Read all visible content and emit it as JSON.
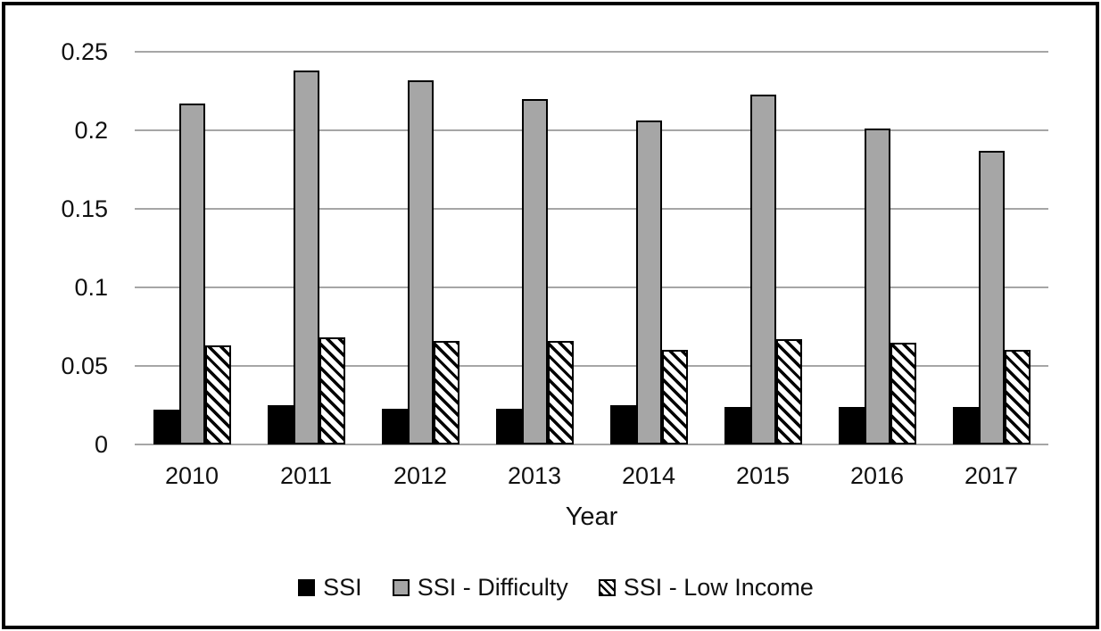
{
  "figure": {
    "background": "#ffffff",
    "frame_border_color": "#000000"
  },
  "chart_data": {
    "type": "bar",
    "title": "",
    "xlabel": "Year",
    "ylabel": "",
    "categories": [
      "2010",
      "2011",
      "2012",
      "2013",
      "2014",
      "2015",
      "2016",
      "2017"
    ],
    "series": [
      {
        "name": "SSI",
        "style": "solid-black",
        "color": "#000000",
        "values": [
          0.022,
          0.025,
          0.023,
          0.023,
          0.025,
          0.024,
          0.024,
          0.024
        ]
      },
      {
        "name": "SSI - Difficulty",
        "style": "solid-gray",
        "color": "#a6a6a6",
        "values": [
          0.217,
          0.238,
          0.232,
          0.22,
          0.206,
          0.223,
          0.201,
          0.187
        ]
      },
      {
        "name": "SSI - Low Income",
        "style": "hatch-diagonal",
        "color": "#ffffff",
        "hatch": "diagonal-backslash",
        "values": [
          0.063,
          0.068,
          0.066,
          0.066,
          0.06,
          0.067,
          0.065,
          0.06
        ]
      }
    ],
    "ylim": [
      0,
      0.25
    ],
    "yticks": [
      0,
      0.05,
      0.1,
      0.15,
      0.2,
      0.25
    ],
    "ytick_labels": [
      "0",
      "0.05",
      "0.1",
      "0.15",
      "0.2",
      "0.25"
    ],
    "grid": true,
    "gridline_color": "#a6a6a6",
    "legend_position": "bottom"
  }
}
